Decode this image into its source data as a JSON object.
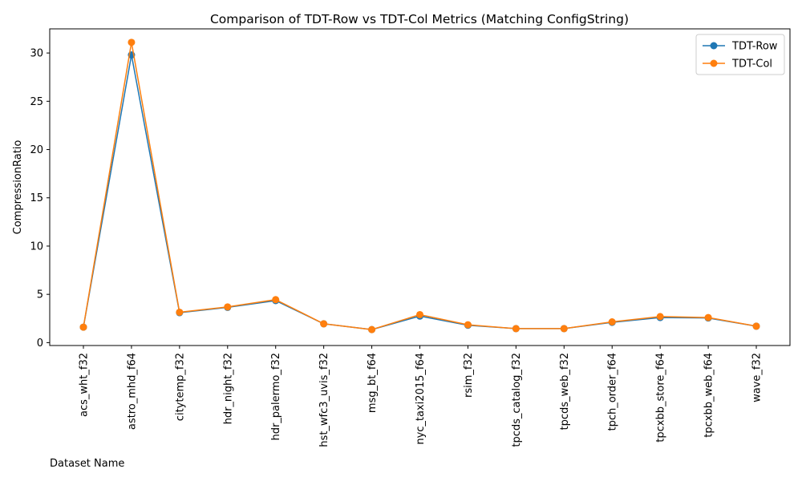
{
  "chart_data": {
    "type": "line",
    "title": "Comparison of TDT-Row vs TDT-Col Metrics (Matching ConfigString)",
    "xlabel": "Dataset Name",
    "ylabel": "CompressionRatio",
    "ylim": [
      -0.3,
      32.5
    ],
    "yticks": [
      0,
      5,
      10,
      15,
      20,
      25,
      30
    ],
    "categories": [
      "acs_wht_f32",
      "astro_mhd_f64",
      "citytemp_f32",
      "hdr_night_f32",
      "hdr_palermo_f32",
      "hst_wfc3_uvis_f32",
      "msg_bt_f64",
      "nyc_taxi2015_f64",
      "rsim_f32",
      "tpcds_catalog_f32",
      "tpcds_web_f32",
      "tpch_order_f64",
      "tpcxbb_store_f64",
      "tpcxbb_web_f64",
      "wave_f32"
    ],
    "series": [
      {
        "name": "TDT-Row",
        "color": "#1f77b4",
        "values": [
          1.6,
          29.8,
          3.1,
          3.65,
          4.35,
          1.95,
          1.35,
          2.75,
          1.8,
          1.45,
          1.45,
          2.1,
          2.6,
          2.55,
          1.7
        ]
      },
      {
        "name": "TDT-Col",
        "color": "#ff7f0e",
        "values": [
          1.6,
          31.1,
          3.15,
          3.7,
          4.45,
          1.95,
          1.35,
          2.9,
          1.85,
          1.45,
          1.45,
          2.15,
          2.7,
          2.6,
          1.7
        ]
      }
    ],
    "grid": false,
    "legend_position": "top-right"
  }
}
